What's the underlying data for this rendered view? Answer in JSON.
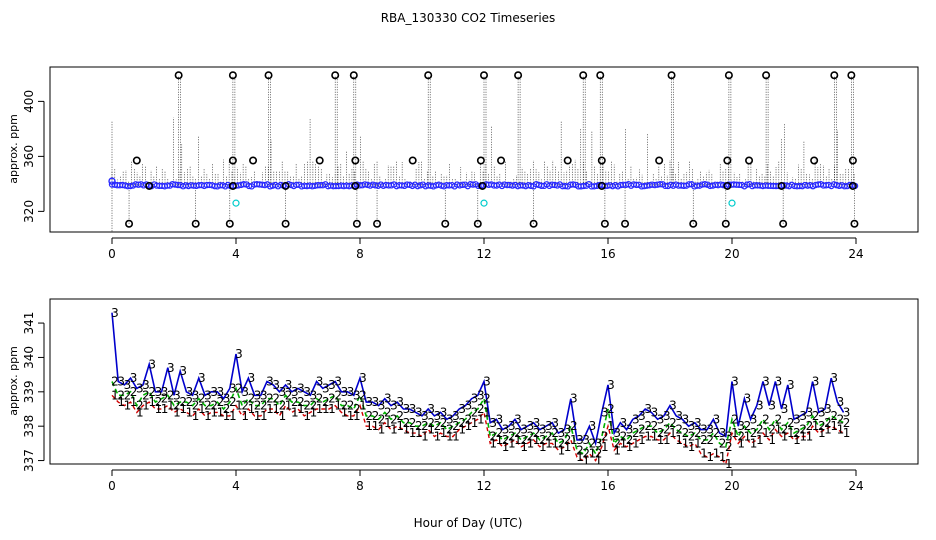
{
  "title": "RBA_130330  CO2 Timeseries",
  "xlabel": "Hour of Day (UTC)",
  "colors": {
    "base": "#1a1aff",
    "baseline_points": "#2929ff",
    "low_flag": "#00cccc",
    "series1": "#d00000",
    "series2": "#00b000",
    "series3": "#0000cc",
    "spikes": "#000000"
  },
  "chart_data": [
    {
      "type": "scatter",
      "panel": "top",
      "ylabel": "approx. ppm",
      "xlim": [
        -2,
        26
      ],
      "ylim": [
        305,
        425
      ],
      "xticks": [
        0,
        4,
        8,
        12,
        16,
        20,
        24
      ],
      "xtick_labels": [
        "0",
        "4",
        "8",
        "12",
        "16",
        "20",
        "24"
      ],
      "yticks": [
        320,
        360,
        400
      ],
      "ytick_labels": [
        "320",
        "360",
        "400"
      ],
      "baseline_ppm": 339,
      "high_outliers_x": [
        2.15,
        3.9,
        5.05,
        7.2,
        7.8,
        10.2,
        12.0,
        13.1,
        15.2,
        15.75,
        18.05,
        19.9,
        21.1,
        23.3,
        23.85
      ],
      "high_outliers_y": 419,
      "mid_outliers_x": [
        0.8,
        3.9,
        4.55,
        6.7,
        7.85,
        9.7,
        11.9,
        12.55,
        14.7,
        15.8,
        17.65,
        19.85,
        20.55,
        22.65,
        23.9
      ],
      "mid_outliers_y": 357,
      "low_outliers_x": [
        0.55,
        2.7,
        3.8,
        5.6,
        7.9,
        8.55,
        10.75,
        11.8,
        13.6,
        15.9,
        16.55,
        18.75,
        19.8,
        21.65,
        23.95
      ],
      "low_outliers_y": 311,
      "cyan_points_x": [
        4.0,
        12.0,
        20.0
      ],
      "cyan_points_y": 326
    },
    {
      "type": "line",
      "panel": "bottom",
      "ylabel": "approx. ppm",
      "xlim": [
        -2,
        26
      ],
      "ylim": [
        336.9,
        341.7
      ],
      "xticks": [
        0,
        4,
        8,
        12,
        16,
        20,
        24
      ],
      "xtick_labels": [
        "0",
        "4",
        "8",
        "12",
        "16",
        "20",
        "24"
      ],
      "yticks": [
        337,
        338,
        339,
        340,
        341
      ],
      "ytick_labels": [
        "337",
        "338",
        "339",
        "340",
        "341"
      ],
      "series": [
        {
          "name": "3",
          "x": [
            0.0,
            0.2,
            0.4,
            0.6,
            0.8,
            1.0,
            1.2,
            1.4,
            1.6,
            1.8,
            2.0,
            2.2,
            2.4,
            2.6,
            2.8,
            3.0,
            3.2,
            3.4,
            3.6,
            3.8,
            4.0,
            4.2,
            4.4,
            4.6,
            4.8,
            5.0,
            5.2,
            5.4,
            5.6,
            5.8,
            6.0,
            6.2,
            6.4,
            6.6,
            6.8,
            7.0,
            7.2,
            7.4,
            7.6,
            7.8,
            8.0,
            8.2,
            8.4,
            8.6,
            8.8,
            9.0,
            9.2,
            9.4,
            9.6,
            9.8,
            10.0,
            10.2,
            10.4,
            10.6,
            10.8,
            11.0,
            11.2,
            11.4,
            11.6,
            11.8,
            12.0,
            12.2,
            12.4,
            12.6,
            12.8,
            13.0,
            13.2,
            13.4,
            13.6,
            13.8,
            14.0,
            14.2,
            14.4,
            14.6,
            14.8,
            15.0,
            15.2,
            15.4,
            15.6,
            15.8,
            16.0,
            16.2,
            16.4,
            16.6,
            16.8,
            17.0,
            17.2,
            17.4,
            17.6,
            17.8,
            18.0,
            18.2,
            18.4,
            18.6,
            18.8,
            19.0,
            19.2,
            19.4,
            19.6,
            19.8,
            20.0,
            20.2,
            20.4,
            20.6,
            20.8,
            21.0,
            21.2,
            21.4,
            21.6,
            21.8,
            22.0,
            22.2,
            22.4,
            22.6,
            22.8,
            23.0,
            23.2,
            23.4,
            23.6
          ],
          "values": [
            341.3,
            339.3,
            339.2,
            339.4,
            339.1,
            339.2,
            339.8,
            339.0,
            339.0,
            339.7,
            338.9,
            339.6,
            339.0,
            338.9,
            339.4,
            338.9,
            339.0,
            339.0,
            338.8,
            339.1,
            340.1,
            339.0,
            339.4,
            338.9,
            338.9,
            339.3,
            339.2,
            339.0,
            339.2,
            339.0,
            339.1,
            339.0,
            338.9,
            339.3,
            339.1,
            339.2,
            339.3,
            339.0,
            339.0,
            338.9,
            339.4,
            338.7,
            338.7,
            338.6,
            338.8,
            338.6,
            338.7,
            338.5,
            338.5,
            338.4,
            338.3,
            338.5,
            338.3,
            338.4,
            338.2,
            338.3,
            338.5,
            338.6,
            338.8,
            338.9,
            339.3,
            338.1,
            338.2,
            337.9,
            338.0,
            338.2,
            337.9,
            338.0,
            338.1,
            337.9,
            338.0,
            338.1,
            337.8,
            337.9,
            338.8,
            337.6,
            337.6,
            338.0,
            337.5,
            338.4,
            339.2,
            337.8,
            338.1,
            337.9,
            338.2,
            338.3,
            338.5,
            338.4,
            338.2,
            338.3,
            338.6,
            338.3,
            338.2,
            338.0,
            338.1,
            337.9,
            337.9,
            338.2,
            337.8,
            337.7,
            339.3,
            338.0,
            338.8,
            338.2,
            338.6,
            339.3,
            338.6,
            339.3,
            338.5,
            339.2,
            338.2,
            338.3,
            338.4,
            339.3,
            338.4,
            338.5,
            339.4,
            338.7,
            338.4
          ]
        },
        {
          "name": "2",
          "x": [
            0.0,
            0.2,
            0.4,
            0.6,
            0.8,
            1.0,
            1.2,
            1.4,
            1.6,
            1.8,
            2.0,
            2.2,
            2.4,
            2.6,
            2.8,
            3.0,
            3.2,
            3.4,
            3.6,
            3.8,
            4.0,
            4.2,
            4.4,
            4.6,
            4.8,
            5.0,
            5.2,
            5.4,
            5.6,
            5.8,
            6.0,
            6.2,
            6.4,
            6.6,
            6.8,
            7.0,
            7.2,
            7.4,
            7.6,
            7.8,
            8.0,
            8.2,
            8.4,
            8.6,
            8.8,
            9.0,
            9.2,
            9.4,
            9.6,
            9.8,
            10.0,
            10.2,
            10.4,
            10.6,
            10.8,
            11.0,
            11.2,
            11.4,
            11.6,
            11.8,
            12.0,
            12.2,
            12.4,
            12.6,
            12.8,
            13.0,
            13.2,
            13.4,
            13.6,
            13.8,
            14.0,
            14.2,
            14.4,
            14.6,
            14.8,
            15.0,
            15.2,
            15.4,
            15.6,
            15.8,
            16.0,
            16.2,
            16.4,
            16.6,
            16.8,
            17.0,
            17.2,
            17.4,
            17.6,
            17.8,
            18.0,
            18.2,
            18.4,
            18.6,
            18.8,
            19.0,
            19.2,
            19.4,
            19.6,
            19.8,
            20.0,
            20.2,
            20.4,
            20.6,
            20.8,
            21.0,
            21.2,
            21.4,
            21.6,
            21.8,
            22.0,
            22.2,
            22.4,
            22.6,
            22.8,
            23.0,
            23.2,
            23.4,
            23.6
          ],
          "values": [
            339.3,
            338.9,
            338.9,
            339.0,
            338.6,
            338.9,
            339.0,
            338.7,
            338.8,
            338.9,
            338.6,
            338.7,
            338.7,
            338.6,
            338.8,
            338.6,
            338.6,
            338.7,
            338.5,
            338.7,
            339.1,
            338.6,
            338.8,
            338.6,
            338.6,
            338.8,
            338.8,
            338.6,
            338.9,
            338.7,
            338.7,
            338.6,
            338.6,
            338.8,
            338.7,
            338.8,
            338.9,
            338.6,
            338.6,
            338.5,
            338.9,
            338.3,
            338.3,
            338.2,
            338.4,
            338.2,
            338.3,
            338.1,
            338.1,
            338.0,
            338.0,
            338.1,
            338.0,
            338.1,
            337.9,
            338.0,
            338.1,
            338.2,
            338.4,
            338.5,
            338.8,
            337.7,
            337.8,
            337.6,
            337.7,
            337.8,
            337.6,
            337.7,
            337.8,
            337.6,
            337.7,
            337.8,
            337.5,
            337.6,
            338.0,
            337.3,
            337.2,
            337.5,
            337.2,
            337.7,
            338.5,
            337.5,
            337.7,
            337.6,
            337.8,
            337.9,
            338.0,
            338.0,
            337.8,
            337.9,
            338.1,
            337.9,
            337.8,
            337.7,
            337.8,
            337.6,
            337.6,
            337.8,
            337.5,
            337.4,
            338.2,
            337.7,
            338.0,
            337.8,
            337.9,
            338.2,
            337.9,
            338.2,
            337.9,
            338.1,
            337.8,
            337.9,
            338.0,
            338.3,
            338.0,
            338.1,
            338.3,
            338.2,
            338.1
          ]
        },
        {
          "name": "1",
          "x": [
            0.0,
            0.2,
            0.4,
            0.6,
            0.8,
            1.0,
            1.2,
            1.4,
            1.6,
            1.8,
            2.0,
            2.2,
            2.4,
            2.6,
            2.8,
            3.0,
            3.2,
            3.4,
            3.6,
            3.8,
            4.0,
            4.2,
            4.4,
            4.6,
            4.8,
            5.0,
            5.2,
            5.4,
            5.6,
            5.8,
            6.0,
            6.2,
            6.4,
            6.6,
            6.8,
            7.0,
            7.2,
            7.4,
            7.6,
            7.8,
            8.0,
            8.2,
            8.4,
            8.6,
            8.8,
            9.0,
            9.2,
            9.4,
            9.6,
            9.8,
            10.0,
            10.2,
            10.4,
            10.6,
            10.8,
            11.0,
            11.2,
            11.4,
            11.6,
            11.8,
            12.0,
            12.2,
            12.4,
            12.6,
            12.8,
            13.0,
            13.2,
            13.4,
            13.6,
            13.8,
            14.0,
            14.2,
            14.4,
            14.6,
            14.8,
            15.0,
            15.2,
            15.4,
            15.6,
            15.8,
            16.0,
            16.2,
            16.4,
            16.6,
            16.8,
            17.0,
            17.2,
            17.4,
            17.6,
            17.8,
            18.0,
            18.2,
            18.4,
            18.6,
            18.8,
            19.0,
            19.2,
            19.4,
            19.6,
            19.8,
            20.0,
            20.2,
            20.4,
            20.6,
            20.8,
            21.0,
            21.2,
            21.4,
            21.6,
            21.8,
            22.0,
            22.2,
            22.4,
            22.6,
            22.8,
            23.0,
            23.2,
            23.4,
            23.6
          ],
          "values": [
            338.9,
            338.7,
            338.6,
            338.7,
            338.4,
            338.6,
            338.7,
            338.5,
            338.5,
            338.6,
            338.4,
            338.5,
            338.4,
            338.3,
            338.5,
            338.3,
            338.4,
            338.4,
            338.3,
            338.3,
            338.6,
            338.3,
            338.5,
            338.3,
            338.3,
            338.5,
            338.5,
            338.3,
            338.6,
            338.4,
            338.5,
            338.3,
            338.4,
            338.5,
            338.5,
            338.5,
            338.6,
            338.4,
            338.3,
            338.3,
            338.6,
            338.0,
            338.0,
            337.9,
            338.1,
            337.9,
            338.0,
            337.9,
            337.8,
            337.8,
            337.7,
            337.9,
            337.7,
            337.8,
            337.7,
            337.7,
            337.9,
            338.0,
            338.1,
            338.2,
            338.4,
            337.5,
            337.6,
            337.4,
            337.5,
            337.6,
            337.4,
            337.5,
            337.6,
            337.4,
            337.5,
            337.5,
            337.3,
            337.4,
            337.6,
            337.1,
            337.0,
            337.2,
            337.0,
            337.4,
            338.0,
            337.3,
            337.5,
            337.4,
            337.5,
            337.6,
            337.7,
            337.7,
            337.6,
            337.6,
            337.8,
            337.6,
            337.5,
            337.4,
            337.5,
            337.2,
            337.1,
            337.2,
            337.1,
            336.9,
            337.8,
            337.5,
            337.7,
            337.5,
            337.6,
            337.8,
            337.6,
            337.9,
            337.7,
            337.8,
            337.6,
            337.7,
            337.7,
            338.0,
            337.8,
            337.9,
            338.0,
            337.9,
            337.8
          ]
        }
      ]
    }
  ]
}
